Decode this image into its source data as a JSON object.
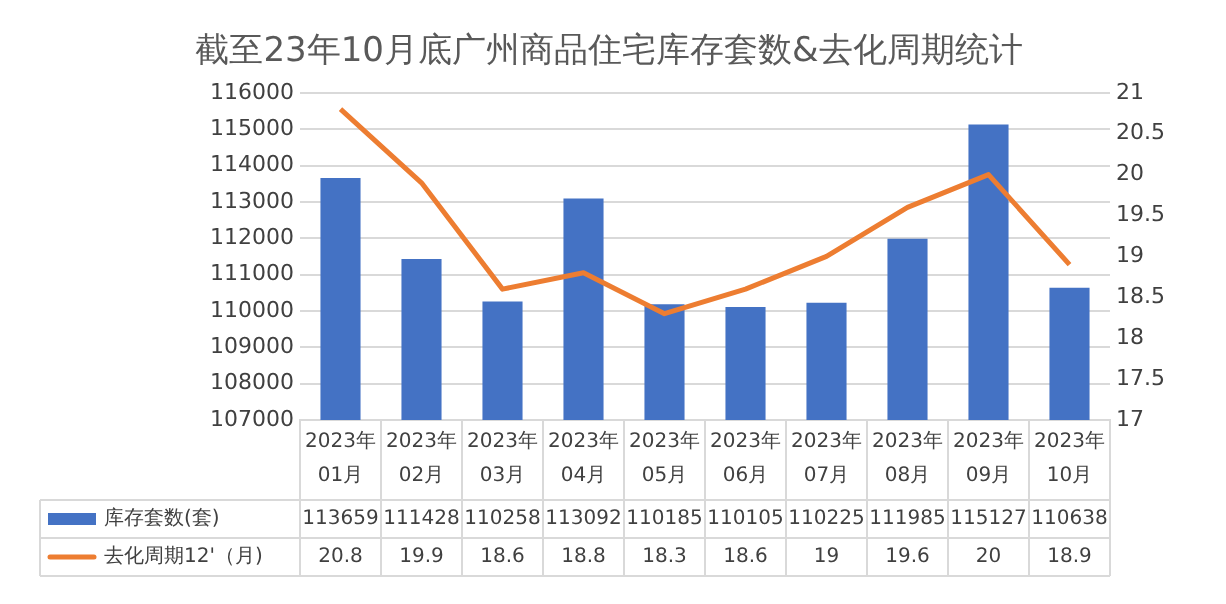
{
  "chart_data": {
    "type": "bar",
    "title": "截至23年10月底广州商品住宅库存套数&去化周期统计",
    "categories": [
      "2023年01月",
      "2023年02月",
      "2023年03月",
      "2023年04月",
      "2023年05月",
      "2023年06月",
      "2023年07月",
      "2023年08月",
      "2023年09月",
      "2023年10月"
    ],
    "series": [
      {
        "name": "库存套数(套)",
        "color": "#4472c4",
        "values": [
          113659,
          111428,
          110258,
          113092,
          110185,
          110105,
          110225,
          111985,
          115127,
          110638
        ]
      },
      {
        "name": "去化周期12'（月)",
        "type": "line",
        "axis": "y2",
        "color": "#ed7d31",
        "values": [
          20.8,
          19.9,
          18.6,
          18.8,
          18.3,
          18.6,
          19,
          19.6,
          20,
          18.9
        ]
      }
    ],
    "ylim": [
      107000,
      116000
    ],
    "yticks": [
      107000,
      108000,
      109000,
      110000,
      111000,
      112000,
      113000,
      114000,
      115000,
      116000
    ],
    "y2lim": [
      17,
      21
    ],
    "y2ticks": [
      17,
      {
        "value": 17.5,
        "label": "17.5"
      },
      18,
      {
        "value": 18.5,
        "label": "18.5"
      },
      19,
      {
        "value": 19.5,
        "label": "19.5"
      },
      20,
      {
        "value": 20.5,
        "label": "20.5"
      },
      21
    ],
    "grid": "y",
    "legend": "bottom",
    "data_labels": true,
    "marker": "none"
  }
}
